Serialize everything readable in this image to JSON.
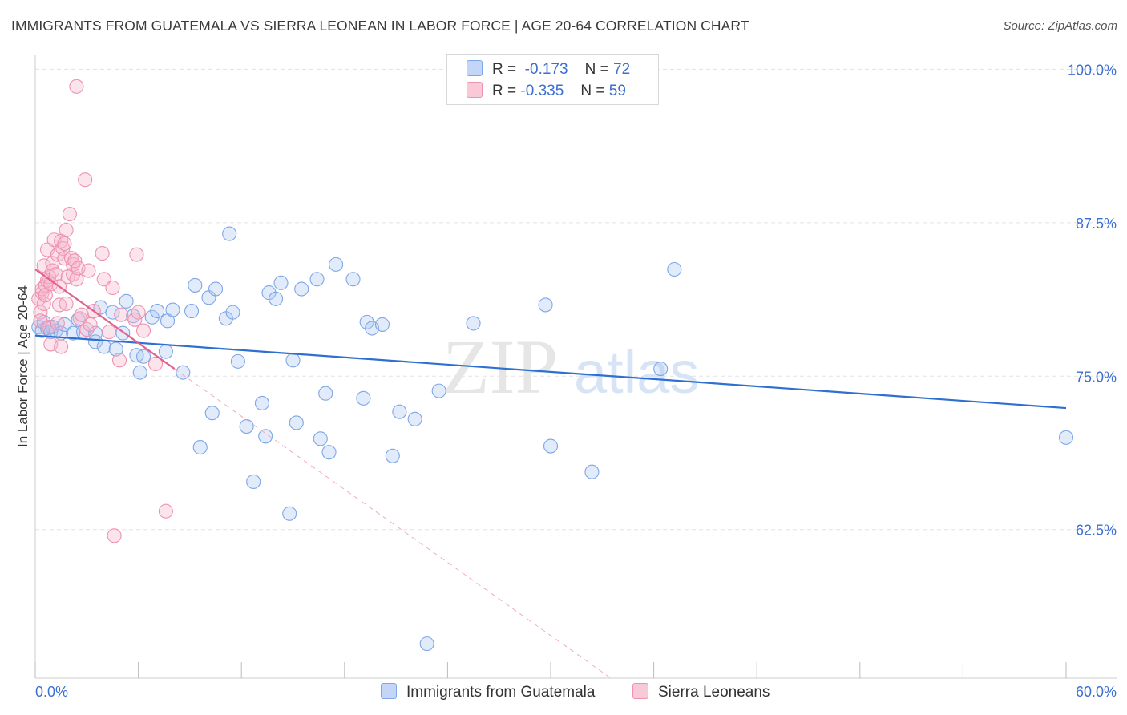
{
  "title": "IMMIGRANTS FROM GUATEMALA VS SIERRA LEONEAN IN LABOR FORCE | AGE 20-64 CORRELATION CHART",
  "source": "Source: ZipAtlas.com",
  "watermark": {
    "zip": "ZIP",
    "atlas": "atlas"
  },
  "legend_top": [
    {
      "r_label": "R =",
      "r_value": "-0.173",
      "n_label": "N =",
      "n_value": "72",
      "color": "#7fa6e8"
    },
    {
      "r_label": "R =",
      "r_value": "-0.335",
      "n_label": "N =",
      "n_value": "59",
      "color": "#ee92b0"
    }
  ],
  "legend_bottom": [
    {
      "label": "Immigrants from Guatemala",
      "color": "#7fa6e8"
    },
    {
      "label": "Sierra Leoneans",
      "color": "#ee92b0"
    }
  ],
  "chart_data": {
    "type": "scatter",
    "title": "IMMIGRANTS FROM GUATEMALA VS SIERRA LEONEAN IN LABOR FORCE | AGE 20-64 CORRELATION CHART",
    "xlabel": "",
    "ylabel": "In Labor Force | Age 20-64",
    "xlim": [
      0,
      60
    ],
    "ylim": [
      50.4,
      101.2
    ],
    "x_tick_labels": [
      "0.0%",
      "60.0%"
    ],
    "y_tick_labels": [
      "100.0%",
      "87.5%",
      "75.0%",
      "62.5%"
    ],
    "y_ticks": [
      100,
      87.5,
      75,
      62.5
    ],
    "grid": true,
    "legend_position": "top-center",
    "series": [
      {
        "name": "Immigrants from Guatemala",
        "color": "#7fa6e8",
        "trend": {
          "x": [
            0,
            60
          ],
          "y": [
            78.3,
            72.4
          ],
          "style": "solid",
          "color": "#2f6fd0"
        },
        "points": [
          [
            0.2,
            79.0
          ],
          [
            0.4,
            78.7
          ],
          [
            0.5,
            79.4
          ],
          [
            0.7,
            78.9
          ],
          [
            0.9,
            78.6
          ],
          [
            1.0,
            79.0
          ],
          [
            1.2,
            78.7
          ],
          [
            1.5,
            78.5
          ],
          [
            1.7,
            79.2
          ],
          [
            2.2,
            78.5
          ],
          [
            2.5,
            79.6
          ],
          [
            2.8,
            78.6
          ],
          [
            3.5,
            78.5
          ],
          [
            3.5,
            77.8
          ],
          [
            3.8,
            80.6
          ],
          [
            4.0,
            77.4
          ],
          [
            4.5,
            80.2
          ],
          [
            4.7,
            77.2
          ],
          [
            5.1,
            78.5
          ],
          [
            5.3,
            81.1
          ],
          [
            5.7,
            79.9
          ],
          [
            5.9,
            76.7
          ],
          [
            6.1,
            75.3
          ],
          [
            6.3,
            76.6
          ],
          [
            6.8,
            79.8
          ],
          [
            7.1,
            80.3
          ],
          [
            7.6,
            77.0
          ],
          [
            7.7,
            79.5
          ],
          [
            8.0,
            80.4
          ],
          [
            8.6,
            75.3
          ],
          [
            9.1,
            80.3
          ],
          [
            9.3,
            82.4
          ],
          [
            9.6,
            69.2
          ],
          [
            10.1,
            81.4
          ],
          [
            10.3,
            72.0
          ],
          [
            10.5,
            82.1
          ],
          [
            11.1,
            79.7
          ],
          [
            11.3,
            86.6
          ],
          [
            11.5,
            80.2
          ],
          [
            11.8,
            76.2
          ],
          [
            12.3,
            70.9
          ],
          [
            12.7,
            66.4
          ],
          [
            13.2,
            72.8
          ],
          [
            13.4,
            70.1
          ],
          [
            13.6,
            81.8
          ],
          [
            14.0,
            81.3
          ],
          [
            14.3,
            82.6
          ],
          [
            14.8,
            63.8
          ],
          [
            15.0,
            76.3
          ],
          [
            15.2,
            71.2
          ],
          [
            15.5,
            82.1
          ],
          [
            16.4,
            82.9
          ],
          [
            16.6,
            69.9
          ],
          [
            16.9,
            73.6
          ],
          [
            17.1,
            68.8
          ],
          [
            17.5,
            84.1
          ],
          [
            18.5,
            82.9
          ],
          [
            19.1,
            73.2
          ],
          [
            19.3,
            79.4
          ],
          [
            19.6,
            78.9
          ],
          [
            20.2,
            79.2
          ],
          [
            20.8,
            68.5
          ],
          [
            21.2,
            72.1
          ],
          [
            22.1,
            71.5
          ],
          [
            22.8,
            53.2
          ],
          [
            23.5,
            73.8
          ],
          [
            25.5,
            79.3
          ],
          [
            29.7,
            80.8
          ],
          [
            30.0,
            69.3
          ],
          [
            32.4,
            67.2
          ],
          [
            36.4,
            75.6
          ],
          [
            37.2,
            83.7
          ],
          [
            60.0,
            70.0
          ]
        ]
      },
      {
        "name": "Sierra Leoneans",
        "color": "#ee92b0",
        "trend": {
          "x": [
            0,
            8.1
          ],
          "y": [
            83.7,
            75.6
          ],
          "style": "solid",
          "color": "#e0628c"
        },
        "trend_extension": {
          "x": [
            8.1,
            33.5
          ],
          "y": [
            75.6,
            50.4
          ],
          "style": "dashed",
          "color": "#eeaac2"
        },
        "points": [
          [
            0.2,
            81.3
          ],
          [
            0.3,
            80.2
          ],
          [
            0.3,
            79.5
          ],
          [
            0.4,
            81.8
          ],
          [
            0.4,
            82.1
          ],
          [
            0.5,
            80.9
          ],
          [
            0.5,
            84.0
          ],
          [
            0.6,
            82.4
          ],
          [
            0.6,
            81.6
          ],
          [
            0.7,
            82.8
          ],
          [
            0.7,
            85.3
          ],
          [
            0.8,
            83.1
          ],
          [
            0.8,
            79.0
          ],
          [
            0.9,
            82.5
          ],
          [
            0.9,
            77.6
          ],
          [
            1.0,
            84.2
          ],
          [
            1.0,
            83.6
          ],
          [
            1.1,
            86.1
          ],
          [
            1.2,
            83.3
          ],
          [
            1.3,
            84.9
          ],
          [
            1.3,
            79.3
          ],
          [
            1.4,
            82.3
          ],
          [
            1.4,
            80.8
          ],
          [
            1.5,
            86.0
          ],
          [
            1.5,
            77.4
          ],
          [
            1.6,
            85.4
          ],
          [
            1.7,
            85.8
          ],
          [
            1.7,
            84.6
          ],
          [
            1.8,
            86.9
          ],
          [
            1.8,
            80.9
          ],
          [
            1.9,
            83.1
          ],
          [
            2.0,
            88.2
          ],
          [
            2.1,
            84.6
          ],
          [
            2.2,
            83.3
          ],
          [
            2.2,
            84.1
          ],
          [
            2.3,
            84.4
          ],
          [
            2.4,
            82.9
          ],
          [
            2.5,
            83.8
          ],
          [
            2.4,
            98.6
          ],
          [
            2.6,
            79.7
          ],
          [
            2.7,
            80.0
          ],
          [
            2.9,
            91.0
          ],
          [
            3.0,
            78.8
          ],
          [
            3.1,
            83.6
          ],
          [
            3.2,
            79.2
          ],
          [
            3.4,
            80.3
          ],
          [
            3.9,
            85.0
          ],
          [
            4.0,
            82.9
          ],
          [
            4.3,
            78.6
          ],
          [
            4.5,
            82.2
          ],
          [
            4.6,
            62.0
          ],
          [
            4.9,
            76.3
          ],
          [
            5.0,
            80.0
          ],
          [
            5.8,
            79.6
          ],
          [
            5.9,
            84.9
          ],
          [
            6.0,
            80.2
          ],
          [
            6.3,
            78.7
          ],
          [
            7.0,
            76.0
          ],
          [
            7.6,
            64.0
          ]
        ]
      }
    ]
  }
}
